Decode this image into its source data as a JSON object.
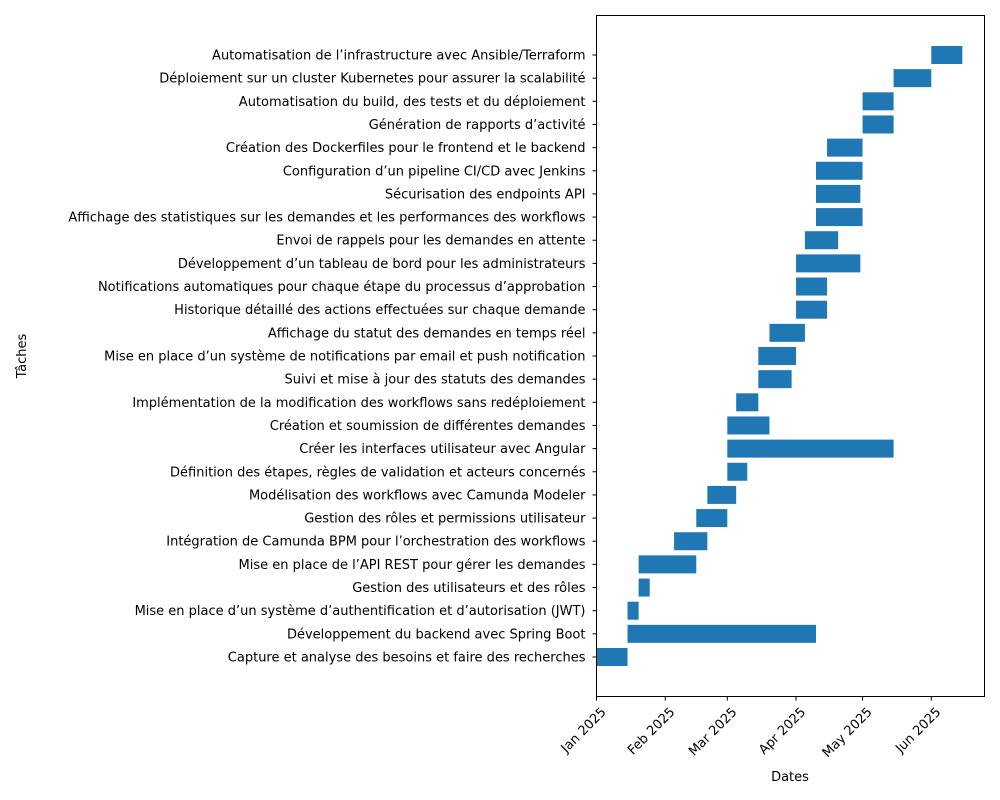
{
  "chart_data": {
    "type": "bar",
    "orientation": "horizontal-gantt",
    "title": "",
    "xlabel": "Dates",
    "ylabel": "Tâches",
    "xlim": [
      "2025-01-01",
      "2025-06-25"
    ],
    "x_ticks": [
      {
        "date": "2025-01-01",
        "label": "Jan 2025"
      },
      {
        "date": "2025-02-01",
        "label": "Feb 2025"
      },
      {
        "date": "2025-03-01",
        "label": "Mar 2025"
      },
      {
        "date": "2025-04-01",
        "label": "Apr 2025"
      },
      {
        "date": "2025-05-01",
        "label": "May 2025"
      },
      {
        "date": "2025-06-01",
        "label": "Jun 2025"
      }
    ],
    "bar_color": "#1f77b4",
    "grid": false,
    "tasks": [
      {
        "name": "Capture et analyse des besoins et faire des recherches",
        "start": "2025-01-01",
        "end": "2025-01-15"
      },
      {
        "name": "Développement du backend avec Spring Boot",
        "start": "2025-01-15",
        "end": "2025-04-10"
      },
      {
        "name": "Mise en place d’un système d’authentification et d’autorisation (JWT)",
        "start": "2025-01-15",
        "end": "2025-01-20"
      },
      {
        "name": "Gestion des utilisateurs et des rôles",
        "start": "2025-01-20",
        "end": "2025-01-25"
      },
      {
        "name": "Mise en place de l’API REST pour gérer les demandes",
        "start": "2025-01-20",
        "end": "2025-02-15"
      },
      {
        "name": "Intégration de Camunda BPM pour l’orchestration des workflows",
        "start": "2025-02-05",
        "end": "2025-02-20"
      },
      {
        "name": "Gestion des rôles et permissions utilisateur",
        "start": "2025-02-15",
        "end": "2025-03-01"
      },
      {
        "name": "Modélisation des workflows avec Camunda Modeler",
        "start": "2025-02-20",
        "end": "2025-03-05"
      },
      {
        "name": "Définition des étapes, règles de validation et acteurs concernés",
        "start": "2025-03-01",
        "end": "2025-03-10"
      },
      {
        "name": "Créer les interfaces utilisateur avec Angular",
        "start": "2025-03-01",
        "end": "2025-05-15"
      },
      {
        "name": "Création et soumission de différentes demandes",
        "start": "2025-03-01",
        "end": "2025-03-20"
      },
      {
        "name": "Implémentation de la modification des workflows sans redéploiement",
        "start": "2025-03-05",
        "end": "2025-03-15"
      },
      {
        "name": "Suivi et mise à jour des statuts des demandes",
        "start": "2025-03-15",
        "end": "2025-03-30"
      },
      {
        "name": "Mise en place d’un système de notifications par email et push notification",
        "start": "2025-03-15",
        "end": "2025-04-01"
      },
      {
        "name": "Affichage du statut des demandes en temps réel",
        "start": "2025-03-20",
        "end": "2025-04-05"
      },
      {
        "name": "Historique détaillé des actions effectuées sur chaque demande",
        "start": "2025-04-01",
        "end": "2025-04-15"
      },
      {
        "name": "Notifications automatiques pour chaque étape du processus d’approbation",
        "start": "2025-04-01",
        "end": "2025-04-15"
      },
      {
        "name": "Développement d’un tableau de bord pour les administrateurs",
        "start": "2025-04-01",
        "end": "2025-04-30"
      },
      {
        "name": "Envoi de rappels pour les demandes en attente",
        "start": "2025-04-05",
        "end": "2025-04-20"
      },
      {
        "name": "Affichage des statistiques sur les demandes et les performances des workflows",
        "start": "2025-04-10",
        "end": "2025-05-01"
      },
      {
        "name": "Sécurisation des endpoints API",
        "start": "2025-04-10",
        "end": "2025-04-30"
      },
      {
        "name": "Configuration d’un pipeline CI/CD avec Jenkins",
        "start": "2025-04-10",
        "end": "2025-05-01"
      },
      {
        "name": "Création des Dockerfiles pour le frontend et le backend",
        "start": "2025-04-15",
        "end": "2025-05-01"
      },
      {
        "name": "Génération de rapports d’activité",
        "start": "2025-05-01",
        "end": "2025-05-15"
      },
      {
        "name": "Automatisation du build, des tests et du déploiement",
        "start": "2025-05-01",
        "end": "2025-05-15"
      },
      {
        "name": "Déploiement sur un cluster Kubernetes pour assurer la scalabilité",
        "start": "2025-05-15",
        "end": "2025-06-01"
      },
      {
        "name": "Automatisation de l’infrastructure avec Ansible/Terraform",
        "start": "2025-06-01",
        "end": "2025-06-15"
      }
    ]
  }
}
